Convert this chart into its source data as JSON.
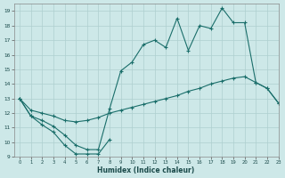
{
  "xlabel": "Humidex (Indice chaleur)",
  "xlim": [
    -0.5,
    23
  ],
  "ylim": [
    9,
    19.5
  ],
  "yticks": [
    9,
    10,
    11,
    12,
    13,
    14,
    15,
    16,
    17,
    18,
    19
  ],
  "xticks": [
    0,
    1,
    2,
    3,
    4,
    5,
    6,
    7,
    8,
    9,
    10,
    11,
    12,
    13,
    14,
    15,
    16,
    17,
    18,
    19,
    20,
    21,
    22,
    23
  ],
  "bg_color": "#cde8e8",
  "grid_color": "#aecfcf",
  "line_color": "#1a6e6a",
  "series_min_x": [
    0,
    1,
    2,
    3,
    4,
    5,
    6,
    7,
    8
  ],
  "series_min_y": [
    13.0,
    11.8,
    11.2,
    10.7,
    9.8,
    9.2,
    9.2,
    9.2,
    10.2
  ],
  "series_smooth_x": [
    0,
    1,
    2,
    3,
    4,
    5,
    6,
    7,
    8,
    9,
    10,
    11,
    12,
    13,
    14,
    15,
    16,
    17,
    18,
    19,
    20,
    21,
    22,
    23
  ],
  "series_smooth_y": [
    13.0,
    12.2,
    12.0,
    11.8,
    11.5,
    11.4,
    11.5,
    11.7,
    12.0,
    12.2,
    12.4,
    12.6,
    12.8,
    13.0,
    13.2,
    13.5,
    13.7,
    14.0,
    14.2,
    14.4,
    14.5,
    14.1,
    13.7,
    12.7
  ],
  "series_upper_x": [
    0,
    1,
    2,
    3,
    4,
    5,
    6,
    7,
    8,
    9,
    10,
    11,
    12,
    13,
    14,
    15,
    16,
    17,
    18,
    19,
    20,
    21,
    22,
    23
  ],
  "series_upper_y": [
    13.0,
    11.8,
    11.5,
    11.1,
    10.5,
    9.8,
    9.5,
    9.5,
    12.3,
    14.9,
    15.5,
    16.7,
    17.0,
    16.5,
    18.5,
    16.3,
    18.0,
    17.8,
    19.2,
    18.2,
    18.2,
    14.1,
    13.7,
    12.7
  ]
}
